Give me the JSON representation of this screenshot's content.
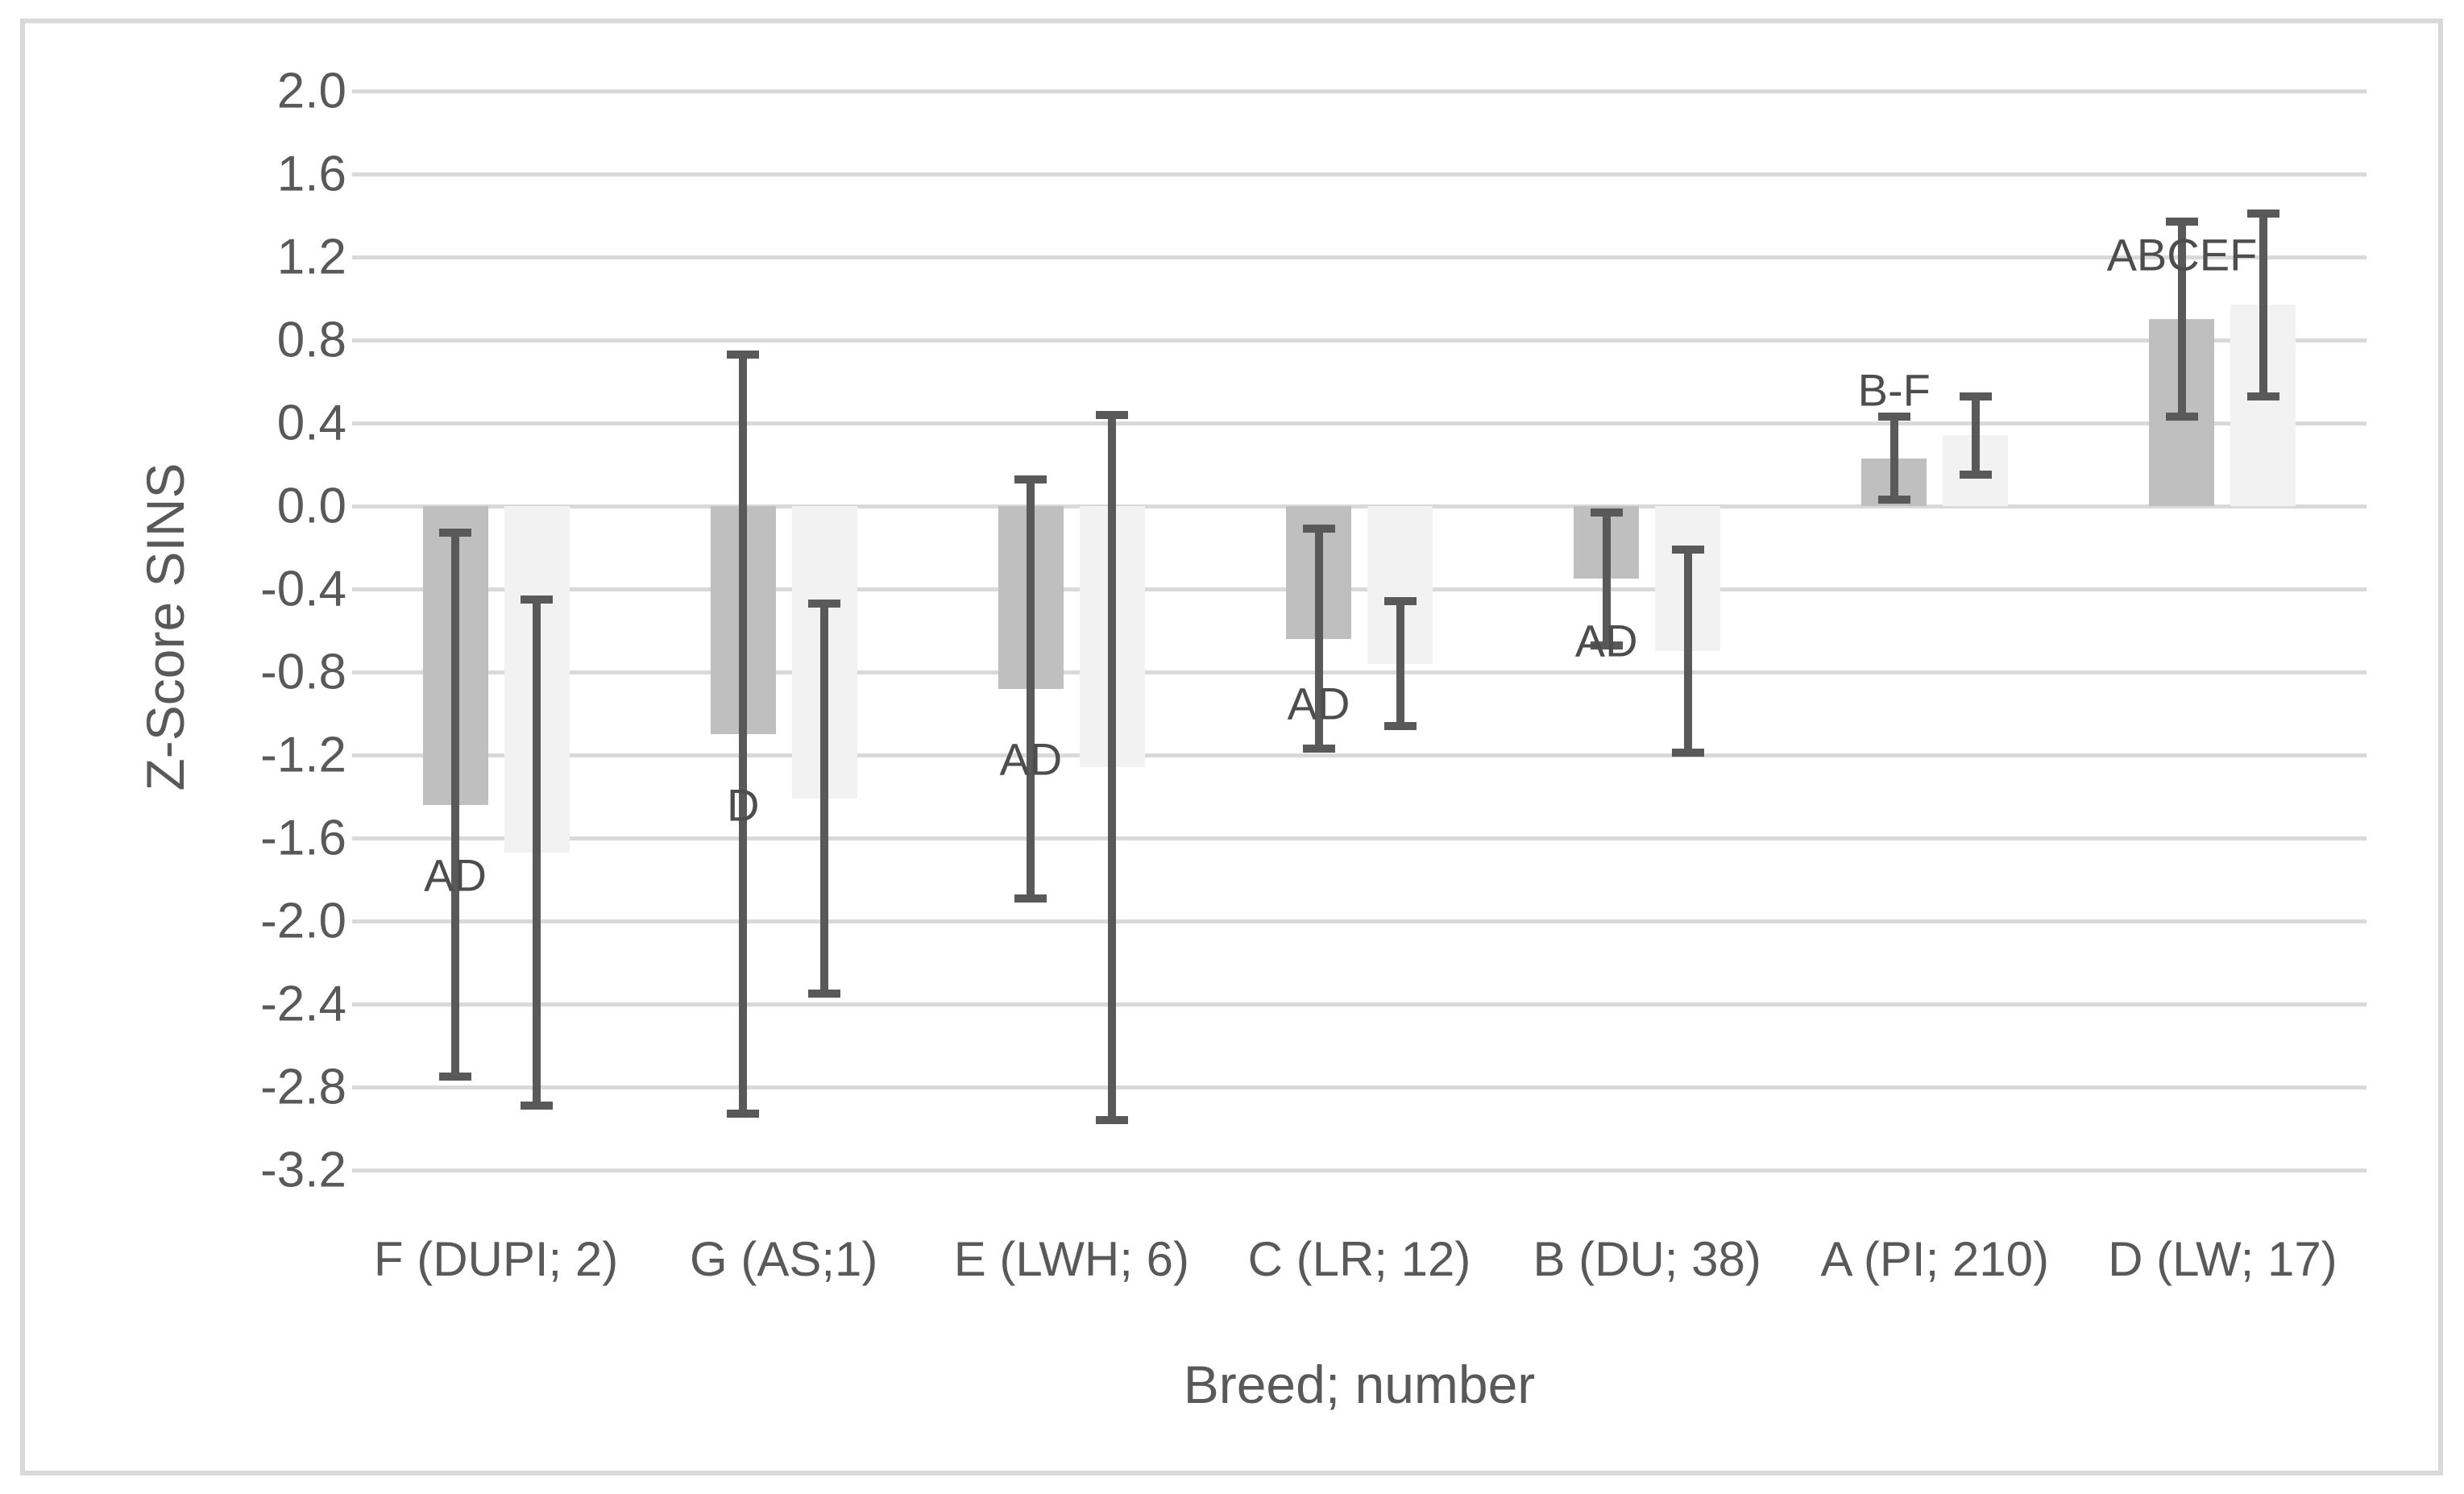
{
  "chart_data": {
    "type": "bar",
    "title": "",
    "xlabel": "Breed; number",
    "ylabel": "Z-Score SINS",
    "categories": [
      "F (DUPI; 2)",
      "G (AS;1)",
      "E (LWH; 6)",
      "C (LR; 12)",
      "B (DU; 38)",
      "A (PI; 210)",
      "D (LW; 17)"
    ],
    "series": [
      {
        "name": "dark-gray-series",
        "color": "#bfbfbf",
        "values": [
          -1.44,
          -1.1,
          -0.88,
          -0.64,
          -0.35,
          0.23,
          0.9
        ],
        "errors": [
          1.31,
          1.83,
          1.01,
          0.53,
          0.32,
          0.2,
          0.47
        ]
      },
      {
        "name": "light-gray-series",
        "color": "#f2f2f2",
        "values": [
          -1.67,
          -1.41,
          -1.26,
          -0.76,
          -0.7,
          0.34,
          0.97
        ],
        "errors": [
          1.22,
          0.94,
          1.7,
          0.3,
          0.49,
          0.19,
          0.44
        ]
      }
    ],
    "significance_labels": [
      {
        "category": "F (DUPI; 2)",
        "text": "AD",
        "y": -1.78
      },
      {
        "category": "G (AS;1)",
        "text": "D",
        "y": -1.44
      },
      {
        "category": "E (LWH; 6)",
        "text": "AD",
        "y": -1.22
      },
      {
        "category": "C (LR; 12)",
        "text": "AD",
        "y": -0.95
      },
      {
        "category": "B (DU; 38)",
        "text": "AD",
        "y": -0.65
      },
      {
        "category": "A (PI; 210)",
        "text": "B-F",
        "y": 0.56
      },
      {
        "category": "D (LW; 17)",
        "text": "ABCEF",
        "y": 1.21
      }
    ],
    "ylim": [
      -3.2,
      2.0
    ],
    "ytick_step": 0.4,
    "ytick_labels": [
      "2.0",
      "1.6",
      "1.2",
      "0.8",
      "0.4",
      "0.0",
      "-0.4",
      "-0.8",
      "-1.2",
      "-1.6",
      "-2.0",
      "-2.4",
      "-2.8",
      "-3.2"
    ],
    "grid": true,
    "legend": false,
    "colors": {
      "error_bar": "#595959",
      "gridline": "#d9d9d9",
      "text": "#595959",
      "frame_border": "#d9d9d9",
      "background": "#ffffff"
    }
  }
}
